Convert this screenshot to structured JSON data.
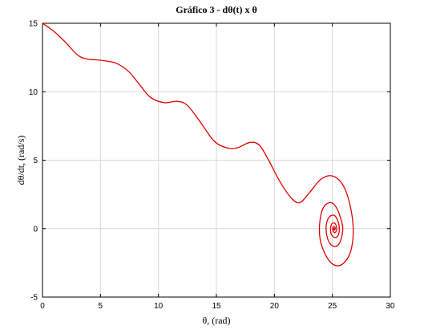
{
  "chart_data": {
    "type": "line",
    "title": "Gráfico 3 - dθ(t) x θ",
    "xlabel": "θ, (rad)",
    "ylabel": "dθ/dt, (rad/s)",
    "xlim": [
      0,
      30
    ],
    "ylim": [
      -5,
      15
    ],
    "xticks": [
      0,
      5,
      10,
      15,
      20,
      25,
      30
    ],
    "yticks": [
      -5,
      0,
      5,
      10,
      15
    ],
    "xtick_labels": [
      "0",
      "5",
      "10",
      "15",
      "20",
      "25",
      "30"
    ],
    "ytick_labels": [
      "-5",
      "0",
      "5",
      "10",
      "15"
    ],
    "grid": true,
    "series": [
      {
        "color": "#e00000",
        "points": [
          [
            0,
            15
          ],
          [
            1,
            14.4
          ],
          [
            2,
            13.6
          ],
          [
            3,
            12.7
          ],
          [
            3.8,
            12.4
          ],
          [
            5,
            12.3
          ],
          [
            6.3,
            12.1
          ],
          [
            7.4,
            11.5
          ],
          [
            8.3,
            10.6
          ],
          [
            9.3,
            9.6
          ],
          [
            10.5,
            9.2
          ],
          [
            11.6,
            9.3
          ],
          [
            12.5,
            9.0
          ],
          [
            13.6,
            7.8
          ],
          [
            14.8,
            6.4
          ],
          [
            15.9,
            5.9
          ],
          [
            16.8,
            5.9
          ],
          [
            17.9,
            6.3
          ],
          [
            18.7,
            6.1
          ],
          [
            19.5,
            5.0
          ],
          [
            20.5,
            3.4
          ],
          [
            21.5,
            2.2
          ],
          [
            22.2,
            1.9
          ],
          [
            23,
            2.6
          ],
          [
            24,
            3.6
          ],
          [
            25,
            3.85
          ],
          [
            25.9,
            3.2
          ],
          [
            26.5,
            1.8
          ],
          [
            26.8,
            0
          ],
          [
            26.6,
            -1.6
          ],
          [
            26.0,
            -2.5
          ],
          [
            25.3,
            -2.7
          ],
          [
            24.6,
            -2.2
          ],
          [
            24.0,
            -1.0
          ],
          [
            23.9,
            0.3
          ],
          [
            24.2,
            1.5
          ],
          [
            24.8,
            1.9
          ],
          [
            25.3,
            1.6
          ],
          [
            25.7,
            0.8
          ],
          [
            25.9,
            0
          ],
          [
            25.7,
            -0.9
          ],
          [
            25.3,
            -1.3
          ],
          [
            24.8,
            -1.1
          ],
          [
            24.5,
            -0.4
          ],
          [
            24.5,
            0.4
          ],
          [
            24.8,
            0.9
          ],
          [
            25.2,
            0.95
          ],
          [
            25.5,
            0.5
          ],
          [
            25.6,
            0
          ],
          [
            25.5,
            -0.5
          ],
          [
            25.2,
            -0.65
          ],
          [
            24.9,
            -0.4
          ],
          [
            24.85,
            0
          ],
          [
            24.95,
            0.35
          ],
          [
            25.2,
            0.4
          ],
          [
            25.35,
            0.15
          ],
          [
            25.35,
            -0.15
          ],
          [
            25.2,
            -0.3
          ],
          [
            25.05,
            -0.15
          ],
          [
            25.05,
            0.1
          ],
          [
            25.15,
            0.15
          ],
          [
            25.25,
            0.05
          ],
          [
            25.2,
            -0.1
          ],
          [
            25.12,
            -0.05
          ],
          [
            25.14,
            0.03
          ],
          [
            25.15,
            0
          ]
        ]
      }
    ]
  }
}
